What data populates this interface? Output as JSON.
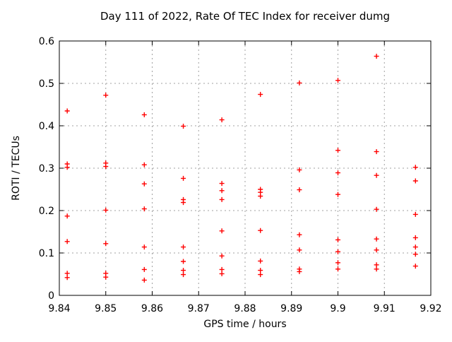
{
  "title": "Day 111 of 2022, Rate Of TEC Index for receiver dumg",
  "chart_data": {
    "type": "scatter",
    "title": "Day 111 of 2022, Rate Of TEC Index for receiver dumg",
    "xlabel": "GPS time / hours",
    "ylabel": "ROTI / TECUs",
    "xlim": [
      9.84,
      9.92
    ],
    "ylim": [
      0,
      0.6
    ],
    "xticks": [
      9.84,
      9.85,
      9.86,
      9.87,
      9.88,
      9.89,
      9.9,
      9.91,
      9.92
    ],
    "xtick_labels": [
      "9.84",
      "9.85",
      "9.86",
      "9.87",
      "9.88",
      "9.89",
      "9.9",
      "9.91",
      "9.92"
    ],
    "yticks": [
      0,
      0.1,
      0.2,
      0.3,
      0.4,
      0.5,
      0.6
    ],
    "ytick_labels": [
      "0",
      "0.1",
      "0.2",
      "0.3",
      "0.4",
      "0.5",
      "0.6"
    ],
    "grid": true,
    "legend": "none",
    "marker": {
      "shape": "plus",
      "color": "#ff0000"
    },
    "grid_color": "#a0a0a0",
    "axis_color": "#000000",
    "series": [
      {
        "name": "ROTI",
        "points": [
          [
            9.8417,
            0.435
          ],
          [
            9.8417,
            0.31
          ],
          [
            9.8417,
            0.302
          ],
          [
            9.8417,
            0.187
          ],
          [
            9.8417,
            0.127
          ],
          [
            9.8417,
            0.052
          ],
          [
            9.8417,
            0.042
          ],
          [
            9.85,
            0.472
          ],
          [
            9.85,
            0.312
          ],
          [
            9.85,
            0.304
          ],
          [
            9.85,
            0.201
          ],
          [
            9.85,
            0.122
          ],
          [
            9.85,
            0.052
          ],
          [
            9.85,
            0.043
          ],
          [
            9.8583,
            0.426
          ],
          [
            9.8583,
            0.308
          ],
          [
            9.8583,
            0.263
          ],
          [
            9.8583,
            0.204
          ],
          [
            9.8583,
            0.114
          ],
          [
            9.8583,
            0.061
          ],
          [
            9.8583,
            0.036
          ],
          [
            9.8667,
            0.399
          ],
          [
            9.8667,
            0.276
          ],
          [
            9.8667,
            0.226
          ],
          [
            9.8667,
            0.219
          ],
          [
            9.8667,
            0.114
          ],
          [
            9.8667,
            0.08
          ],
          [
            9.8667,
            0.059
          ],
          [
            9.8667,
            0.049
          ],
          [
            9.875,
            0.414
          ],
          [
            9.875,
            0.264
          ],
          [
            9.875,
            0.247
          ],
          [
            9.875,
            0.226
          ],
          [
            9.875,
            0.152
          ],
          [
            9.875,
            0.093
          ],
          [
            9.875,
            0.061
          ],
          [
            9.875,
            0.051
          ],
          [
            9.8833,
            0.474
          ],
          [
            9.8833,
            0.25
          ],
          [
            9.8833,
            0.243
          ],
          [
            9.8833,
            0.234
          ],
          [
            9.8833,
            0.153
          ],
          [
            9.8833,
            0.081
          ],
          [
            9.8833,
            0.059
          ],
          [
            9.8833,
            0.049
          ],
          [
            9.8917,
            0.501
          ],
          [
            9.8917,
            0.296
          ],
          [
            9.8917,
            0.249
          ],
          [
            9.8917,
            0.143
          ],
          [
            9.8917,
            0.107
          ],
          [
            9.8917,
            0.062
          ],
          [
            9.8917,
            0.056
          ],
          [
            9.9,
            0.507
          ],
          [
            9.9,
            0.342
          ],
          [
            9.9,
            0.289
          ],
          [
            9.9,
            0.238
          ],
          [
            9.9,
            0.131
          ],
          [
            9.9,
            0.103
          ],
          [
            9.9,
            0.077
          ],
          [
            9.9,
            0.062
          ],
          [
            9.9083,
            0.564
          ],
          [
            9.9083,
            0.339
          ],
          [
            9.9083,
            0.283
          ],
          [
            9.9083,
            0.203
          ],
          [
            9.9083,
            0.133
          ],
          [
            9.9083,
            0.107
          ],
          [
            9.9083,
            0.072
          ],
          [
            9.9083,
            0.062
          ],
          [
            9.9167,
            0.302
          ],
          [
            9.9167,
            0.27
          ],
          [
            9.9167,
            0.191
          ],
          [
            9.9167,
            0.136
          ],
          [
            9.9167,
            0.114
          ],
          [
            9.9167,
            0.097
          ],
          [
            9.9167,
            0.069
          ]
        ]
      }
    ]
  }
}
